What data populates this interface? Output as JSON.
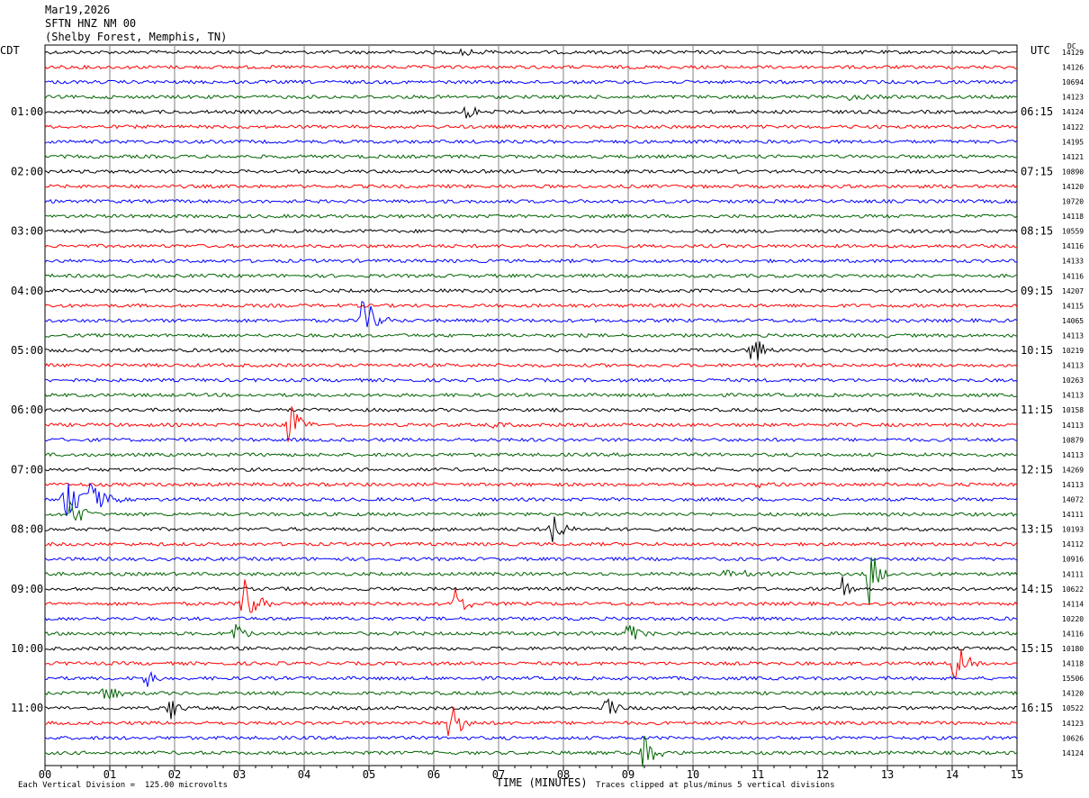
{
  "header": {
    "date": "Mar19,2026",
    "station": "SFTN HNZ NM 00",
    "location": "(Shelby Forest, Memphis, TN)"
  },
  "left_tz": "CDT",
  "right_tz": "UTC",
  "dc_label": "DC",
  "footer": {
    "scale_note": "Each Vertical Division =  125.00 microvolts",
    "clip_note": "Traces clipped at plus/minus 5 vertical divisions"
  },
  "colors": {
    "trace_cycle": [
      "#000000",
      "#ff0000",
      "#0000ff",
      "#006400"
    ],
    "grid": "#808080"
  },
  "chart_data": {
    "type": "line",
    "xlabel": "TIME (MINUTES)",
    "xlim": [
      0,
      15
    ],
    "x_ticks": [
      "00",
      "01",
      "02",
      "03",
      "04",
      "05",
      "06",
      "07",
      "08",
      "09",
      "10",
      "11",
      "12",
      "13",
      "14",
      "15"
    ],
    "left_hour_labels": [
      "01:00",
      "02:00",
      "03:00",
      "04:00",
      "05:00",
      "06:00",
      "07:00",
      "08:00",
      "09:00",
      "10:00",
      "11:00"
    ],
    "right_hour_labels": [
      "06:15",
      "07:15",
      "08:15",
      "09:15",
      "10:15",
      "11:15",
      "12:15",
      "13:15",
      "14:15",
      "15:15",
      "16:15"
    ],
    "trace_count": 48,
    "trace_minutes": 15,
    "dc_offsets": [
      "14129",
      "14126",
      "10694",
      "14123",
      "14124",
      "14122",
      "14195",
      "14121",
      "10890",
      "14120",
      "10720",
      "14118",
      "10559",
      "14116",
      "14133",
      "14116",
      "14207",
      "14115",
      "14065",
      "14113",
      "10219",
      "14113",
      "10263",
      "14113",
      "10158",
      "14113",
      "10879",
      "14113",
      "14269",
      "14113",
      "14072",
      "14111",
      "10193",
      "14112",
      "10916",
      "14111",
      "10622",
      "14114",
      "10220",
      "14116",
      "10180",
      "14118",
      "15506",
      "14120",
      "10522",
      "14123",
      "10626",
      "14124"
    ],
    "events": [
      {
        "trace": 18,
        "minute": 4.92,
        "amplitude": 5,
        "duration": 0.4
      },
      {
        "trace": 20,
        "minute": 10.92,
        "amplitude": 3,
        "duration": 0.4
      },
      {
        "trace": 25,
        "minute": 3.78,
        "amplitude": 4,
        "duration": 0.4
      },
      {
        "trace": 30,
        "minute": 0.3,
        "amplitude": 3.5,
        "duration": 0.5
      },
      {
        "trace": 30,
        "minute": 0.68,
        "amplitude": 3.5,
        "duration": 0.5
      },
      {
        "trace": 31,
        "minute": 0.42,
        "amplitude": 3,
        "duration": 0.4
      },
      {
        "trace": 32,
        "minute": 7.8,
        "amplitude": 3.5,
        "duration": 0.4
      },
      {
        "trace": 35,
        "minute": 12.72,
        "amplitude": 5,
        "duration": 0.35
      },
      {
        "trace": 36,
        "minute": 12.3,
        "amplitude": 2.5,
        "duration": 0.3
      },
      {
        "trace": 37,
        "minute": 3.05,
        "amplitude": 5,
        "duration": 0.45
      },
      {
        "trace": 37,
        "minute": 6.35,
        "amplitude": 3,
        "duration": 0.35
      },
      {
        "trace": 39,
        "minute": 2.92,
        "amplitude": 2,
        "duration": 0.35
      },
      {
        "trace": 39,
        "minute": 9.0,
        "amplitude": 2.5,
        "duration": 0.4
      },
      {
        "trace": 41,
        "minute": 14.05,
        "amplitude": 4,
        "duration": 0.35
      },
      {
        "trace": 42,
        "minute": 1.58,
        "amplitude": 2,
        "duration": 0.3
      },
      {
        "trace": 43,
        "minute": 0.9,
        "amplitude": 2,
        "duration": 0.5
      },
      {
        "trace": 44,
        "minute": 1.92,
        "amplitude": 2.5,
        "duration": 0.3
      },
      {
        "trace": 44,
        "minute": 8.68,
        "amplitude": 2,
        "duration": 0.3
      },
      {
        "trace": 45,
        "minute": 6.25,
        "amplitude": 4,
        "duration": 0.4
      },
      {
        "trace": 47,
        "minute": 9.25,
        "amplitude": 4,
        "duration": 0.4
      },
      {
        "trace": 0,
        "minute": 6.4,
        "amplitude": 0.6,
        "duration": 0.8
      },
      {
        "trace": 4,
        "minute": 6.5,
        "amplitude": 1.0,
        "duration": 0.6
      },
      {
        "trace": 3,
        "minute": 12.4,
        "amplitude": 0.6,
        "duration": 0.6
      },
      {
        "trace": 35,
        "minute": 10.5,
        "amplitude": 0.5,
        "duration": 1.6
      },
      {
        "trace": 25,
        "minute": 6.9,
        "amplitude": 0.4,
        "duration": 0.6
      },
      {
        "trace": 29,
        "minute": 11.0,
        "amplitude": 0.6,
        "duration": 0.4
      }
    ]
  }
}
